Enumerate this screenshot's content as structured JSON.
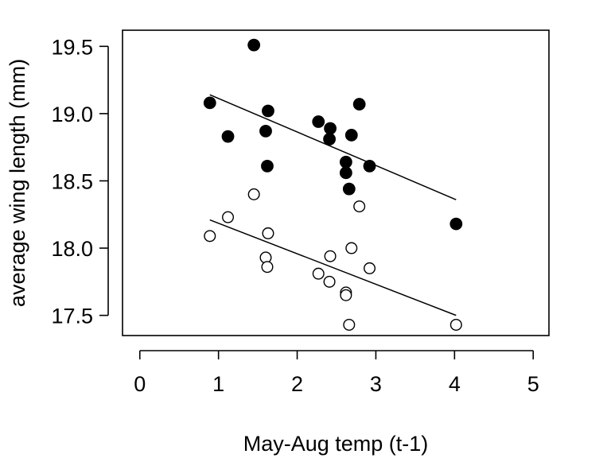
{
  "chart_data": {
    "type": "scatter",
    "title": "",
    "xlabel": "May-Aug temp (t-1)",
    "ylabel": "average wing length (mm)",
    "xlim": [
      -0.22,
      5.2
    ],
    "ylim": [
      17.35,
      19.62
    ],
    "xticks": [
      0,
      1,
      2,
      3,
      4,
      5
    ],
    "xtick_labels": [
      "0",
      "1",
      "2",
      "3",
      "4",
      "5"
    ],
    "yticks": [
      17.5,
      18.0,
      18.5,
      19.0,
      19.5
    ],
    "ytick_labels": [
      "17.5",
      "18.0",
      "18.5",
      "19.0",
      "19.5"
    ],
    "grid": false,
    "legend": "none",
    "series": [
      {
        "marker": "filled-circle",
        "color": "#000000",
        "x": [
          0.89,
          1.12,
          1.45,
          1.6,
          1.63,
          1.62,
          2.27,
          2.41,
          2.42,
          2.62,
          2.62,
          2.66,
          2.69,
          2.79,
          2.92,
          4.02
        ],
        "y": [
          19.08,
          18.83,
          19.51,
          18.87,
          19.02,
          18.61,
          18.94,
          18.81,
          18.89,
          18.64,
          18.56,
          18.44,
          18.84,
          19.07,
          18.61,
          18.18
        ],
        "trend": {
          "x": [
            0.89,
            4.02
          ],
          "y": [
            19.14,
            18.36
          ]
        }
      },
      {
        "marker": "open-circle",
        "color": "#000000",
        "x": [
          0.89,
          1.12,
          1.45,
          1.6,
          1.63,
          1.62,
          2.27,
          2.41,
          2.42,
          2.62,
          2.62,
          2.66,
          2.69,
          2.79,
          2.92,
          4.02
        ],
        "y": [
          18.09,
          18.23,
          18.4,
          17.93,
          18.11,
          17.86,
          17.81,
          17.75,
          17.94,
          17.67,
          17.65,
          17.43,
          18.0,
          18.31,
          17.85,
          17.43
        ],
        "trend": {
          "x": [
            0.89,
            4.02
          ],
          "y": [
            18.21,
            17.5
          ]
        }
      }
    ]
  }
}
